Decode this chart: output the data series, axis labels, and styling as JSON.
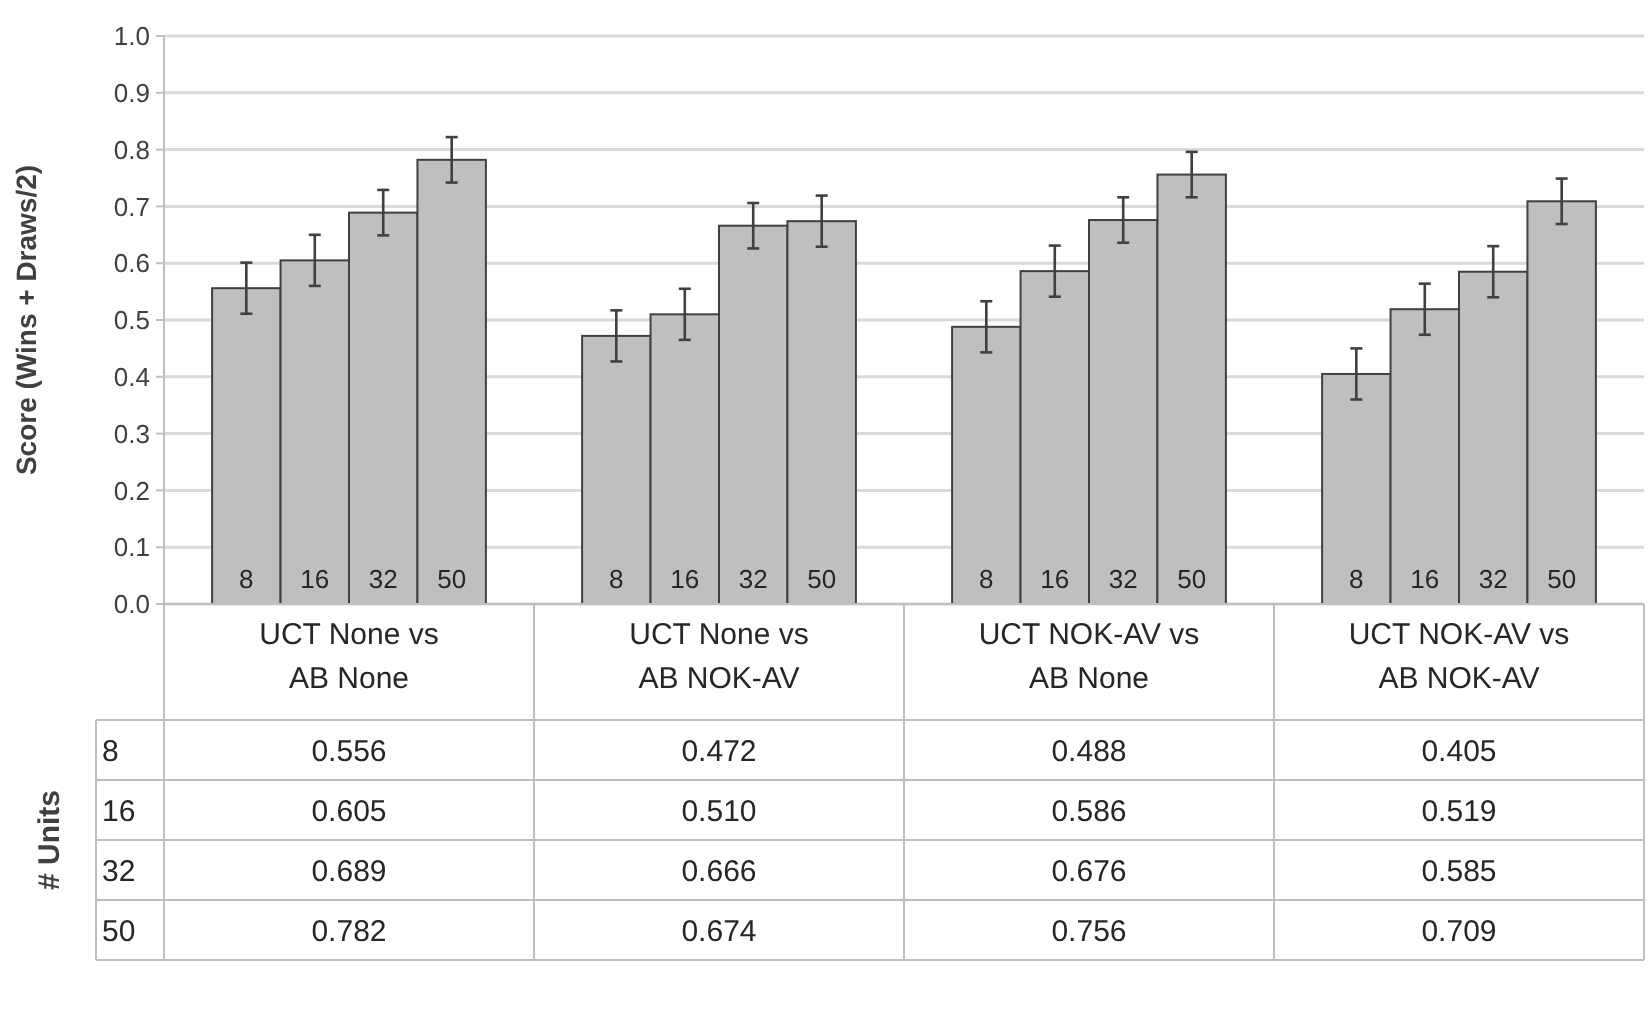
{
  "chart_data": {
    "type": "bar",
    "ylabel": "Score (Wins + Draws/2)",
    "legend_title": "# Units",
    "categories": [
      "UCT None vs AB None",
      "UCT None vs AB NOK-AV",
      "UCT NOK-AV vs AB None",
      "UCT NOK-AV vs AB NOK-AV"
    ],
    "series": [
      {
        "name": "8",
        "color": "#bfbfbf",
        "values": [
          0.556,
          0.472,
          0.488,
          0.405
        ],
        "errors": [
          0.045,
          0.045,
          0.045,
          0.045
        ],
        "value_labels": [
          "0.556",
          "0.472",
          "0.488",
          "0.405"
        ]
      },
      {
        "name": "16",
        "color": "#bfbfbf",
        "values": [
          0.605,
          0.51,
          0.586,
          0.519
        ],
        "errors": [
          0.045,
          0.045,
          0.045,
          0.045
        ],
        "value_labels": [
          "0.605",
          "0.510",
          "0.586",
          "0.519"
        ]
      },
      {
        "name": "32",
        "color": "#bfbfbf",
        "values": [
          0.689,
          0.666,
          0.676,
          0.585
        ],
        "errors": [
          0.04,
          0.04,
          0.04,
          0.045
        ],
        "value_labels": [
          "0.689",
          "0.666",
          "0.676",
          "0.585"
        ]
      },
      {
        "name": "50",
        "color": "#bfbfbf",
        "values": [
          0.782,
          0.674,
          0.756,
          0.709
        ],
        "errors": [
          0.04,
          0.045,
          0.04,
          0.04
        ],
        "value_labels": [
          "0.782",
          "0.674",
          "0.756",
          "0.709"
        ]
      }
    ],
    "ylim": [
      0,
      1
    ],
    "yticks": [
      {
        "value": 0,
        "label": "0.0"
      },
      0.1,
      0.2,
      0.3,
      0.4,
      0.5,
      0.6,
      0.7,
      0.8,
      0.9,
      {
        "value": 1,
        "label": "1.0"
      }
    ],
    "grid": "y"
  }
}
